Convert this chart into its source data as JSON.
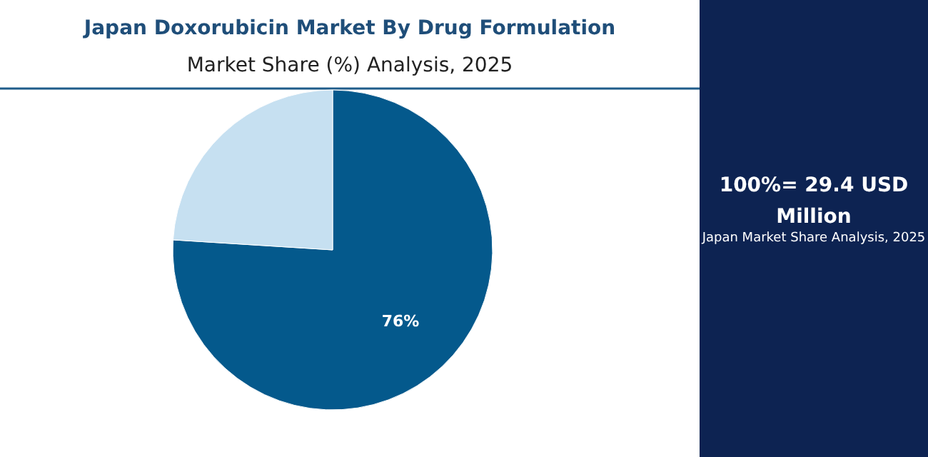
{
  "chart_data": {
    "type": "pie",
    "title": "Japan Doxorubicin Market By Drug Formulation",
    "subtitle": "Market Share (%) Analysis, 2025",
    "categories": [
      null,
      null
    ],
    "values": [
      76,
      24
    ],
    "colors": [
      "#04598c",
      "#c6e0f1"
    ],
    "value_labels": [
      "76%",
      null
    ],
    "annotations": [
      "100%= 29.4 USD Million",
      "Japan Market Share Analysis, 2025"
    ]
  }
}
